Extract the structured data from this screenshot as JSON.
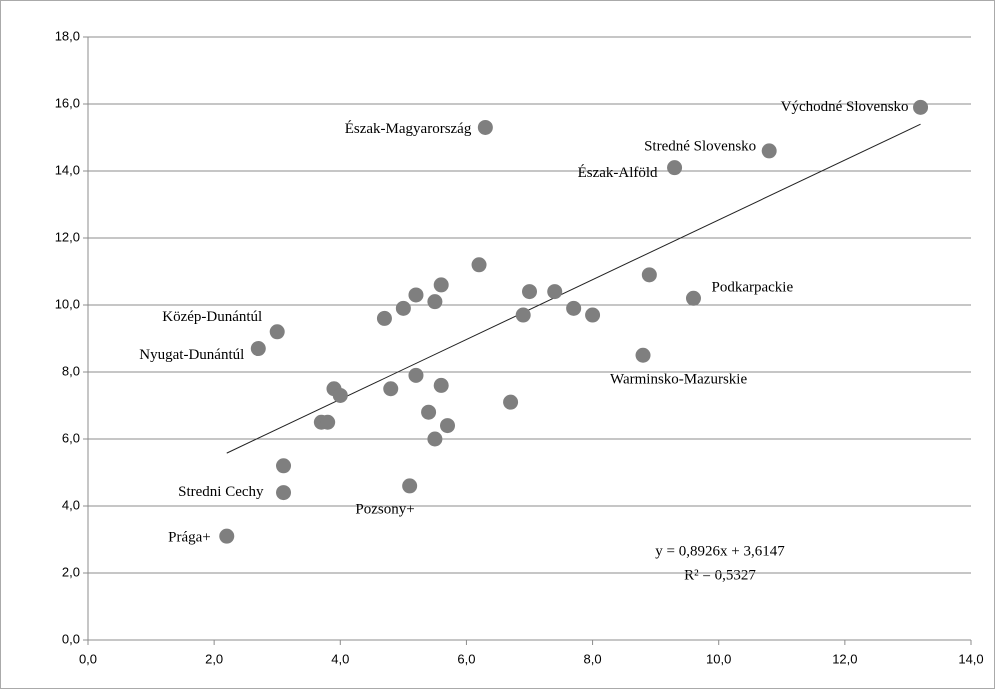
{
  "chart_data": {
    "type": "scatter",
    "color": "#7f7f7f",
    "grid": true,
    "xlim": [
      0,
      14
    ],
    "ylim": [
      0,
      18
    ],
    "xticks": [
      {
        "value": 0,
        "label": "0,0"
      },
      {
        "value": 2,
        "label": "2,0"
      },
      {
        "value": 4,
        "label": "4,0"
      },
      {
        "value": 6,
        "label": "6,0"
      },
      {
        "value": 8,
        "label": "8,0"
      },
      {
        "value": 10,
        "label": "10,0"
      },
      {
        "value": 12,
        "label": "12,0"
      },
      {
        "value": 14,
        "label": "14,0"
      }
    ],
    "yticks": [
      {
        "value": 0,
        "label": "0,0"
      },
      {
        "value": 2,
        "label": "2,0"
      },
      {
        "value": 4,
        "label": "4,0"
      },
      {
        "value": 6,
        "label": "6,0"
      },
      {
        "value": 8,
        "label": "8,0"
      },
      {
        "value": 10,
        "label": "10,0"
      },
      {
        "value": 12,
        "label": "12,0"
      },
      {
        "value": 14,
        "label": "14,0"
      },
      {
        "value": 16,
        "label": "16,0"
      },
      {
        "value": 18,
        "label": "18,0"
      }
    ],
    "x": [
      13.2,
      10.8,
      9.3,
      6.3,
      6.2,
      8.9,
      9.6,
      7.0,
      7.4,
      5.6,
      5.2,
      5.5,
      5.0,
      4.7,
      6.9,
      7.7,
      8.0,
      3.0,
      2.7,
      8.8,
      5.2,
      5.6,
      3.9,
      4.8,
      4.0,
      6.7,
      3.7,
      3.8,
      5.4,
      5.7,
      5.5,
      3.1,
      3.1,
      5.1,
      2.2
    ],
    "values": [
      15.9,
      14.6,
      14.1,
      15.3,
      11.2,
      10.9,
      10.2,
      10.4,
      10.4,
      10.6,
      10.3,
      10.1,
      9.9,
      9.6,
      9.7,
      9.9,
      9.7,
      9.2,
      8.7,
      8.5,
      7.9,
      7.6,
      7.5,
      7.5,
      7.3,
      7.1,
      6.5,
      6.5,
      6.8,
      6.4,
      6.0,
      5.2,
      4.4,
      4.6,
      3.1
    ],
    "labels": [
      "Východné Slovensko",
      "Stredné Slovensko",
      "Észak-Alföld",
      "Észak-Magyarország",
      null,
      null,
      "Podkarpackie",
      null,
      null,
      null,
      null,
      null,
      null,
      null,
      null,
      null,
      null,
      "Közép-Dunántúl",
      "Nyugat-Dunántúl",
      "Warminsko-Mazurskie",
      null,
      null,
      null,
      null,
      null,
      null,
      null,
      null,
      null,
      null,
      null,
      null,
      "Stredni Cechy",
      "Pozsony+",
      "Prága+"
    ],
    "trendline": {
      "slope": 0.8926,
      "intercept": 3.6147,
      "label": "y = 0,8926x + 3,6147",
      "r_squared": 0.5327,
      "r_squared_label": "R² = 0,5327"
    }
  }
}
